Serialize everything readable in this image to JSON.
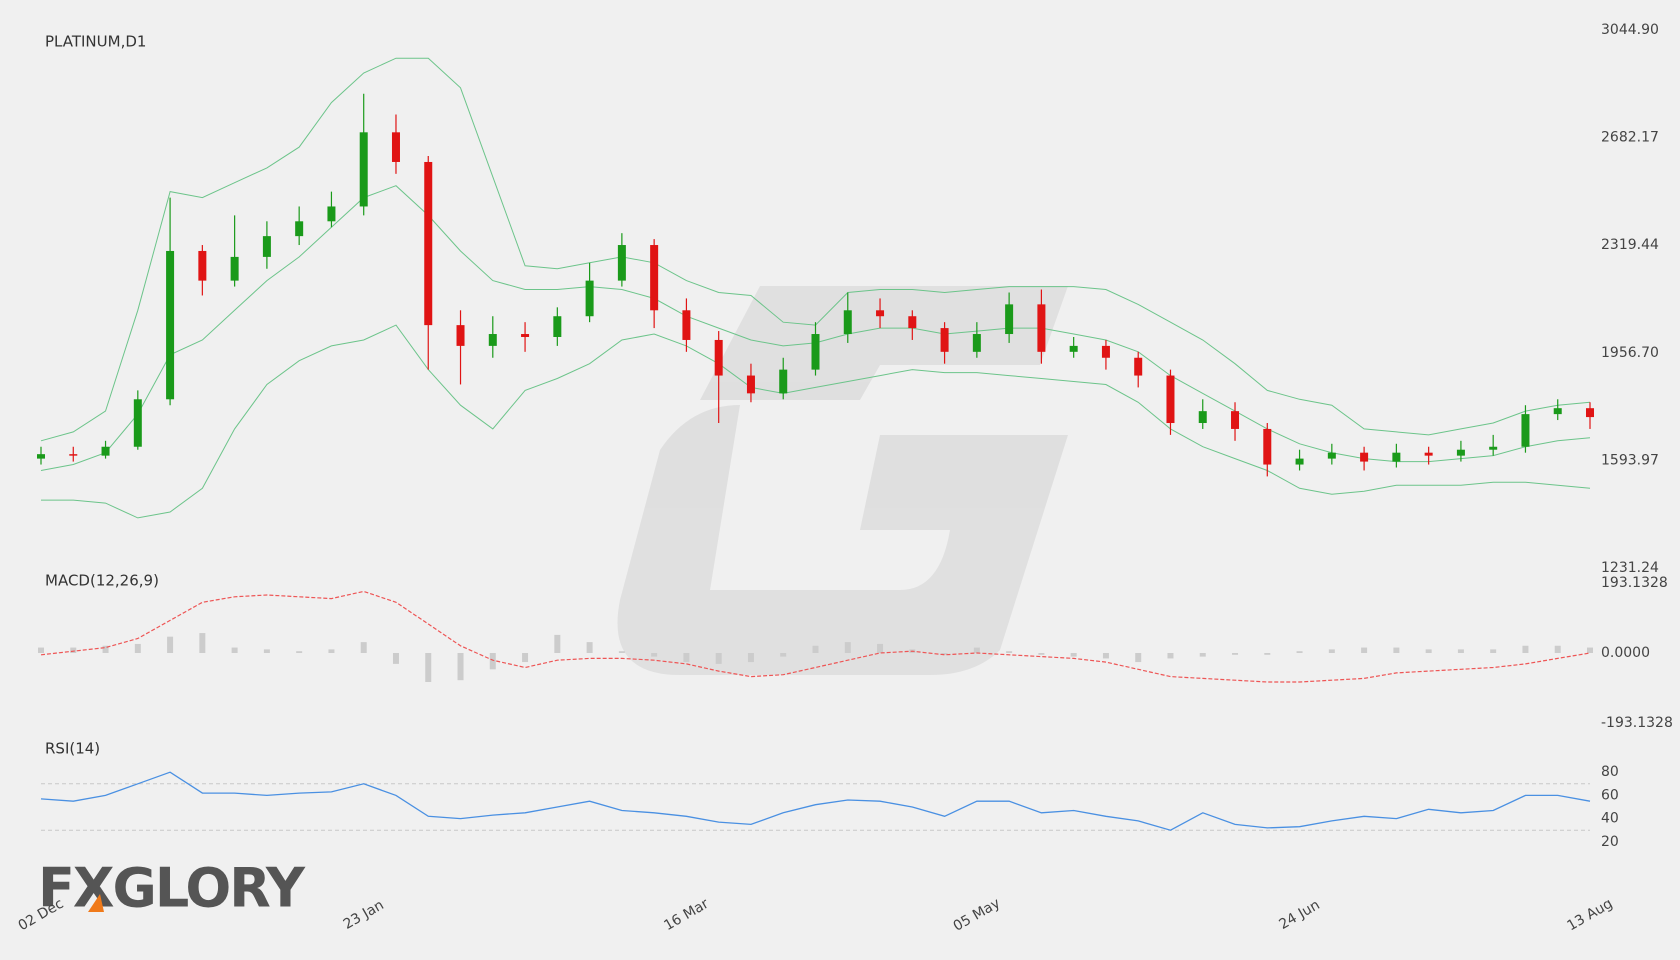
{
  "logo": "FXGLORY",
  "chart_data": [
    {
      "type": "candlestick",
      "title": "PLATINUM,D1",
      "categories": [
        "02 Dec",
        null,
        null,
        null,
        null,
        null,
        null,
        null,
        null,
        null,
        "23 Jan",
        null,
        null,
        null,
        null,
        null,
        null,
        null,
        null,
        null,
        "16 Mar",
        null,
        null,
        null,
        null,
        null,
        null,
        null,
        null,
        "05 May",
        null,
        null,
        null,
        null,
        null,
        null,
        null,
        null,
        null,
        "24 Jun",
        null,
        null,
        null,
        null,
        null,
        null,
        null,
        null,
        "13 Aug"
      ],
      "open": [
        1600,
        1615,
        1610,
        1640,
        1800,
        2300,
        2200,
        2280,
        2350,
        2400,
        2450,
        2700,
        2600,
        2050,
        1980,
        2020,
        2010,
        2080,
        2200,
        2320,
        2100,
        2000,
        1880,
        1820,
        1900,
        2020,
        2100,
        2080,
        2040,
        1960,
        2020,
        2120,
        1960,
        1980,
        1940,
        1880,
        1720,
        1760,
        1700,
        1580,
        1600,
        1620,
        1590,
        1620,
        1610,
        1630,
        1640,
        1750,
        1770
      ],
      "high": [
        1640,
        1640,
        1660,
        1830,
        2480,
        2320,
        2420,
        2400,
        2450,
        2500,
        2830,
        2760,
        2620,
        2100,
        2080,
        2060,
        2110,
        2260,
        2360,
        2340,
        2140,
        2030,
        1920,
        1940,
        2060,
        2160,
        2140,
        2100,
        2060,
        2060,
        2160,
        2170,
        2010,
        2000,
        1960,
        1900,
        1800,
        1790,
        1720,
        1630,
        1650,
        1640,
        1650,
        1640,
        1660,
        1680,
        1780,
        1800,
        1790
      ],
      "low": [
        1580,
        1590,
        1600,
        1630,
        1780,
        2150,
        2180,
        2240,
        2320,
        2380,
        2420,
        2560,
        1900,
        1850,
        1940,
        1960,
        1980,
        2060,
        2180,
        2040,
        1960,
        1720,
        1790,
        1800,
        1880,
        1990,
        2040,
        2000,
        1920,
        1940,
        1990,
        1920,
        1940,
        1900,
        1840,
        1680,
        1700,
        1660,
        1540,
        1560,
        1580,
        1560,
        1570,
        1580,
        1590,
        1610,
        1620,
        1730,
        1700
      ],
      "close": [
        1615,
        1610,
        1640,
        1800,
        2300,
        2200,
        2280,
        2350,
        2400,
        2450,
        2700,
        2600,
        2050,
        1980,
        2020,
        2010,
        2080,
        2200,
        2320,
        2100,
        2000,
        1880,
        1820,
        1900,
        2020,
        2100,
        2080,
        2040,
        1960,
        2020,
        2120,
        1960,
        1980,
        1940,
        1880,
        1720,
        1760,
        1700,
        1580,
        1600,
        1620,
        1590,
        1620,
        1610,
        1630,
        1640,
        1750,
        1770,
        1740
      ],
      "up_color": "#1a9a1a",
      "down_color": "#e01414",
      "bands": {
        "color": "#6cc48a",
        "upper": [
          1660,
          1690,
          1760,
          2100,
          2500,
          2480,
          2530,
          2580,
          2650,
          2800,
          2900,
          2950,
          2950,
          2850,
          2550,
          2250,
          2240,
          2260,
          2280,
          2260,
          2200,
          2160,
          2150,
          2060,
          2050,
          2160,
          2170,
          2170,
          2160,
          2170,
          2180,
          2180,
          2180,
          2170,
          2120,
          2060,
          2000,
          1920,
          1830,
          1800,
          1780,
          1700,
          1690,
          1680,
          1700,
          1720,
          1760,
          1780,
          1790
        ],
        "middle": [
          1560,
          1580,
          1620,
          1750,
          1950,
          2000,
          2100,
          2200,
          2280,
          2380,
          2480,
          2520,
          2420,
          2300,
          2200,
          2170,
          2170,
          2180,
          2170,
          2140,
          2080,
          2040,
          2000,
          1980,
          1990,
          2020,
          2040,
          2040,
          2020,
          2030,
          2040,
          2040,
          2020,
          2000,
          1960,
          1880,
          1820,
          1760,
          1700,
          1650,
          1620,
          1600,
          1590,
          1590,
          1600,
          1610,
          1640,
          1660,
          1670
        ],
        "lower": [
          1460,
          1460,
          1450,
          1400,
          1420,
          1500,
          1700,
          1850,
          1930,
          1980,
          2000,
          2050,
          1900,
          1780,
          1700,
          1830,
          1870,
          1920,
          2000,
          2020,
          1980,
          1920,
          1840,
          1820,
          1840,
          1860,
          1880,
          1900,
          1890,
          1890,
          1880,
          1870,
          1860,
          1850,
          1790,
          1700,
          1640,
          1600,
          1560,
          1500,
          1480,
          1490,
          1510,
          1510,
          1510,
          1520,
          1520,
          1510,
          1500
        ]
      },
      "ylim": [
        1231.24,
        3044.9
      ],
      "yticks": [
        1231.24,
        1593.97,
        {
          "value": 1956.7,
          "label": "1956.70"
        },
        2319.44,
        2682.17,
        {
          "value": 3044.9,
          "label": "3044.90"
        }
      ]
    },
    {
      "type": "macd",
      "title": "MACD(12,26,9)",
      "color": "#ee5555",
      "values": [
        -5,
        5,
        15,
        40,
        90,
        140,
        155,
        160,
        155,
        150,
        170,
        140,
        80,
        20,
        -20,
        -40,
        -20,
        -15,
        -15,
        -20,
        -30,
        -50,
        -65,
        -60,
        -40,
        -20,
        0,
        5,
        -5,
        0,
        -5,
        -10,
        -15,
        -25,
        -45,
        -65,
        -70,
        -75,
        -80,
        -80,
        -75,
        -70,
        -55,
        -50,
        -45,
        -40,
        -30,
        -15,
        0
      ],
      "histogram": [
        15,
        15,
        20,
        25,
        45,
        55,
        15,
        10,
        5,
        10,
        30,
        -30,
        -80,
        -75,
        -45,
        -25,
        50,
        30,
        5,
        -10,
        -25,
        -30,
        -25,
        -10,
        20,
        30,
        25,
        10,
        -5,
        15,
        5,
        -5,
        -10,
        -15,
        -25,
        -15,
        -10,
        -5,
        -5,
        5,
        10,
        15,
        15,
        10,
        10,
        10,
        20,
        20,
        15
      ],
      "histogram_color": "#cccccc",
      "ylim": [
        -193.1328,
        193.1328
      ],
      "yticks": [
        -193.1328,
        {
          "value": 0,
          "label": "0.0000"
        },
        193.1328
      ]
    },
    {
      "type": "rsi",
      "title": "RSI(14)",
      "color": "#4a90e2",
      "values": [
        57,
        55,
        60,
        70,
        80,
        62,
        62,
        60,
        62,
        63,
        70,
        60,
        42,
        40,
        43,
        45,
        50,
        55,
        47,
        45,
        42,
        37,
        35,
        45,
        52,
        56,
        55,
        50,
        42,
        55,
        55,
        45,
        47,
        42,
        38,
        30,
        45,
        35,
        32,
        33,
        38,
        42,
        40,
        48,
        45,
        47,
        60,
        60,
        55
      ],
      "ylim": [
        0,
        100
      ],
      "yticks": [
        20,
        40,
        60,
        80
      ],
      "levels": [
        30,
        70
      ]
    }
  ]
}
